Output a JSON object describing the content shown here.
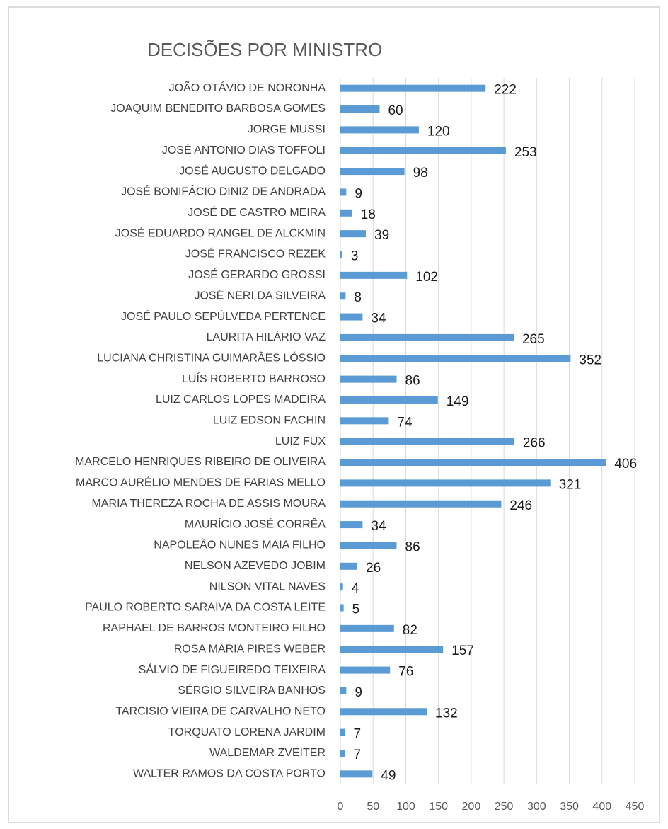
{
  "chart_data": {
    "type": "bar",
    "orientation": "horizontal",
    "title": "DECISÕES POR MINISTRO",
    "categories": [
      "JOÃO OTÁVIO DE NORONHA",
      "JOAQUIM BENEDITO BARBOSA GOMES",
      "JORGE MUSSI",
      "JOSÉ ANTONIO DIAS TOFFOLI",
      "JOSÉ AUGUSTO DELGADO",
      "JOSÉ BONIFÁCIO DINIZ DE ANDRADA",
      "JOSÉ DE CASTRO MEIRA",
      "JOSÉ EDUARDO RANGEL DE ALCKMIN",
      "JOSÉ FRANCISCO REZEK",
      "JOSÉ GERARDO GROSSI",
      "JOSÉ NERI DA SILVEIRA",
      "JOSÉ PAULO SEPÚLVEDA PERTENCE",
      "LAURITA HILÁRIO VAZ",
      "LUCIANA CHRISTINA GUIMARÃES LÓSSIO",
      "LUÍS ROBERTO BARROSO",
      "LUIZ CARLOS LOPES MADEIRA",
      "LUIZ EDSON FACHIN",
      "LUIZ FUX",
      "MARCELO HENRIQUES RIBEIRO DE OLIVEIRA",
      "MARCO AURÉLIO MENDES DE FARIAS MELLO",
      "MARIA THEREZA ROCHA DE ASSIS MOURA",
      "MAURÍCIO JOSÉ CORRÊA",
      "NAPOLEÃO NUNES MAIA FILHO",
      "NELSON AZEVEDO JOBIM",
      "NILSON VITAL NAVES",
      "PAULO ROBERTO SARAIVA DA COSTA LEITE",
      "RAPHAEL DE BARROS MONTEIRO FILHO",
      "ROSA MARIA PIRES WEBER",
      "SÁLVIO DE FIGUEIREDO TEIXEIRA",
      "SÉRGIO SILVEIRA BANHOS",
      "TARCISIO VIEIRA DE CARVALHO NETO",
      "TORQUATO LORENA JARDIM",
      "WALDEMAR ZVEITER",
      "WALTER RAMOS DA COSTA PORTO"
    ],
    "values": [
      222,
      60,
      120,
      253,
      98,
      9,
      18,
      39,
      3,
      102,
      8,
      34,
      265,
      352,
      86,
      149,
      74,
      266,
      406,
      321,
      246,
      34,
      86,
      26,
      4,
      5,
      82,
      157,
      76,
      9,
      132,
      7,
      7,
      49
    ],
    "color": "#5b9bd5",
    "xlim": [
      0,
      450
    ],
    "xticks": [
      0,
      50,
      100,
      150,
      200,
      250,
      300,
      350,
      400,
      450
    ],
    "grid": true
  }
}
